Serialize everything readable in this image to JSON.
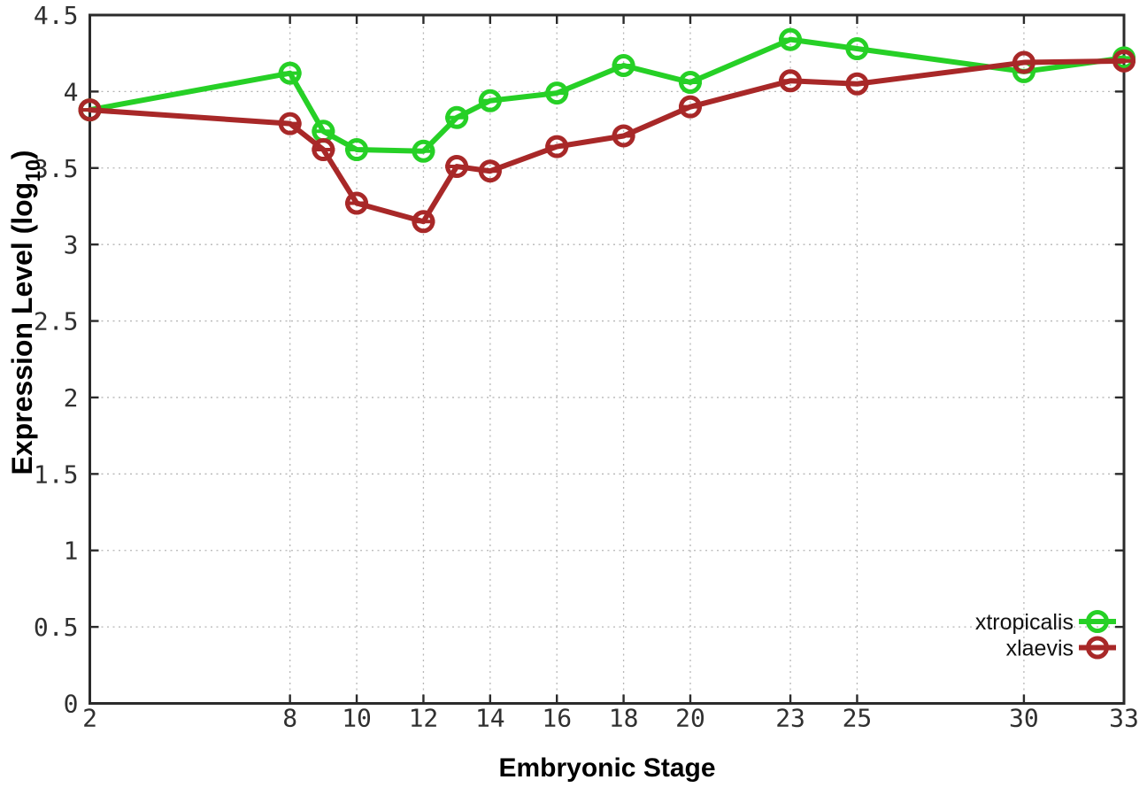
{
  "page": {
    "background": "#ffffff"
  },
  "chart_data": {
    "type": "line",
    "title": "",
    "xlabel": "Embryonic Stage",
    "ylabel": "Expression Level (log10)",
    "ylabel_parts": {
      "main": "Expression Level (log",
      "sub": "10",
      "end": ")"
    },
    "xlim": [
      2,
      33
    ],
    "ylim": [
      0,
      4.5
    ],
    "grid": true,
    "legend_position": "inside-bottom-right",
    "x": [
      2,
      8,
      9,
      10,
      12,
      13,
      14,
      16,
      18,
      20,
      23,
      25,
      30,
      33
    ],
    "xticks": [
      2,
      8,
      10,
      12,
      14,
      16,
      18,
      20,
      23,
      25,
      30,
      33
    ],
    "xtick_labels": [
      "2",
      "8",
      "10",
      "12",
      "14",
      "16",
      "18",
      "20",
      "23",
      "25",
      "30",
      "33"
    ],
    "yticks": [
      0,
      0.5,
      1,
      1.5,
      2,
      2.5,
      3,
      3.5,
      4,
      4.5
    ],
    "ytick_labels": [
      "0",
      "0.5",
      "1",
      "1.5",
      "2",
      "2.5",
      "3",
      "3.5",
      "4",
      "4.5"
    ],
    "series": [
      {
        "name": "xtropicalis",
        "color": "#26d026",
        "values": [
          3.88,
          4.12,
          3.74,
          3.62,
          3.61,
          3.83,
          3.94,
          3.99,
          4.17,
          4.06,
          4.34,
          4.28,
          4.13,
          4.22
        ]
      },
      {
        "name": "xlaevis",
        "color": "#a82828",
        "values": [
          3.88,
          3.79,
          3.62,
          3.27,
          3.15,
          3.51,
          3.48,
          3.64,
          3.71,
          3.9,
          4.07,
          4.05,
          4.19,
          4.2
        ]
      }
    ],
    "colors": {
      "axis": "#2b2b2b",
      "grid": "#b6b6b6",
      "tick_text": "#303030",
      "label_text": "#000000",
      "background": "#ffffff"
    }
  }
}
